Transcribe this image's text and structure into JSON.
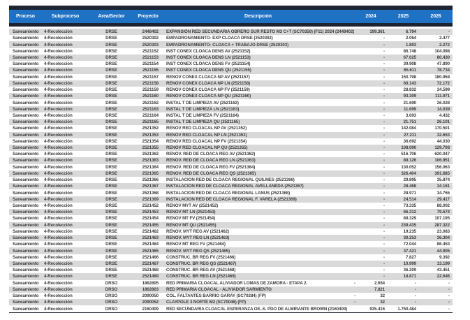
{
  "colors": {
    "header_bg": "#1f71c4",
    "dark_bar": "#1d2330",
    "row_alt": "#d9d9d9",
    "row_text": "#3c3c3c",
    "header_text": "#ffffff"
  },
  "table": {
    "columns": [
      {
        "key": "proceso",
        "label": "Proceso"
      },
      {
        "key": "subproceso",
        "label": "Subproceso"
      },
      {
        "key": "area",
        "label": "Área/Sector"
      },
      {
        "key": "proyecto",
        "label": "Proyecto"
      },
      {
        "key": "descripcion",
        "label": "Descripción"
      },
      {
        "key": "y2024",
        "label": "2024"
      },
      {
        "key": "y2025",
        "label": "2025"
      },
      {
        "key": "y2026",
        "label": "2026"
      }
    ],
    "rows": [
      {
        "proceso": "Saneamiento",
        "subproceso": "4-Recolección",
        "area": "DRSE",
        "proyecto": "2448402",
        "descripcion": "EXPANSIÓN RED SECUNDARIA OBRERO SUR RESTO M3 C+T (SC70350) (F11) 2024 (2448402)",
        "y2024": "199.361",
        "y2025": "6.794",
        "y2026": "-"
      },
      {
        "proceso": "Saneamiento",
        "subproceso": "4-Recolección",
        "area": "DRSE",
        "proyecto": "2520302",
        "descripcion": "EMPADRONAMIENTO- EXP CLOACA DRSE (2520302)",
        "y2024": "-",
        "y2025": "2.064",
        "y2026": "2.477"
      },
      {
        "proceso": "Saneamiento",
        "subproceso": "4-Recolección",
        "area": "DRSE",
        "proyecto": "2520303",
        "descripcion": "EMPADRONAMIENTO- CLOACA + TRABAJO DRSE (2520303)",
        "y2024": "-",
        "y2025": "1.893",
        "y2026": "2.272"
      },
      {
        "proceso": "Saneamiento",
        "subproceso": "4-Recolección",
        "area": "DRSE",
        "proyecto": "2521152",
        "descripcion": "INST CONEX CLOACA DENS  AV (2521152)",
        "y2024": "-",
        "y2025": "86.748",
        "y2026": "104.098"
      },
      {
        "proceso": "Saneamiento",
        "subproceso": "4-Recolección",
        "area": "DRSE",
        "proyecto": "2521153",
        "descripcion": "INST CONEX CLOACA DENS  LN (2521153)",
        "y2024": "-",
        "y2025": "67.025",
        "y2026": "80.430"
      },
      {
        "proceso": "Saneamiento",
        "subproceso": "4-Recolección",
        "area": "DRSE",
        "proyecto": "2521154",
        "descripcion": "INST CONEX CLOACA DENS  FV (2521154)",
        "y2024": "-",
        "y2025": "39.908",
        "y2026": "47.890"
      },
      {
        "proceso": "Saneamiento",
        "subproceso": "4-Recolección",
        "area": "DRSE",
        "proyecto": "2521155",
        "descripcion": "INST CONEX CLOACA DENS  QU (2521155)",
        "y2024": "-",
        "y2025": "65.611",
        "y2026": "78.734"
      },
      {
        "proceso": "Saneamiento",
        "subproceso": "4-Recolección",
        "area": "DRSE",
        "proyecto": "2521157",
        "descripcion": "RENOV CONEX CLOACA NP  AV (2521157)",
        "y2024": "-",
        "y2025": "150.798",
        "y2026": "180.958"
      },
      {
        "proceso": "Saneamiento",
        "subproceso": "4-Recolección",
        "area": "DRSE",
        "proyecto": "2521158",
        "descripcion": "RENOV CONEX CLOACA NP  LN (2521158)",
        "y2024": "-",
        "y2025": "60.143",
        "y2026": "72.172"
      },
      {
        "proceso": "Saneamiento",
        "subproceso": "4-Recolección",
        "area": "DRSE",
        "proyecto": "2521159",
        "descripcion": "RENOV CONEX CLOACA NP  FV (2521159)",
        "y2024": "-",
        "y2025": "28.832",
        "y2026": "34.599"
      },
      {
        "proceso": "Saneamiento",
        "subproceso": "4-Recolección",
        "area": "DRSE",
        "proyecto": "2521160",
        "descripcion": "RENOV CONEX CLOACA NP  QU (2521160)",
        "y2024": "-",
        "y2025": "93.309",
        "y2026": "111.971"
      },
      {
        "proceso": "Saneamiento",
        "subproceso": "4-Recolección",
        "area": "DRSE",
        "proyecto": "2521162",
        "descripcion": "INSTAL T  DE LIMPIEZA  AV (2521162)",
        "y2024": "-",
        "y2025": "21.690",
        "y2026": "26.028"
      },
      {
        "proceso": "Saneamiento",
        "subproceso": "4-Recolección",
        "area": "DRSE",
        "proyecto": "2521163",
        "descripcion": "INSTAL T  DE LIMPIEZA  LN (2521163)",
        "y2024": "-",
        "y2025": "11.699",
        "y2026": "14.039"
      },
      {
        "proceso": "Saneamiento",
        "subproceso": "4-Recolección",
        "area": "DRSE",
        "proyecto": "2521164",
        "descripcion": "INSTAL T  DE LIMPIEZA  FV (2521164)",
        "y2024": "-",
        "y2025": "3.693",
        "y2026": "4.432"
      },
      {
        "proceso": "Saneamiento",
        "subproceso": "4-Recolección",
        "area": "DRSE",
        "proyecto": "2521165",
        "descripcion": "INSTAL T  DE LIMPIEZA  QU (2521165)",
        "y2024": "-",
        "y2025": "21.751",
        "y2026": "26.101"
      },
      {
        "proceso": "Saneamiento",
        "subproceso": "4-Recolección",
        "area": "DRSE",
        "proyecto": "2521352",
        "descripcion": "RENOV RED CLOACAL NP AV (2521352)",
        "y2024": "-",
        "y2025": "142.084",
        "y2026": "170.501"
      },
      {
        "proceso": "Saneamiento",
        "subproceso": "4-Recolección",
        "area": "DRSE",
        "proyecto": "2521353",
        "descripcion": "RENOV RED CLOACAL NP LN (2521353)",
        "y2024": "-",
        "y2025": "27.211",
        "y2026": "32.653"
      },
      {
        "proceso": "Saneamiento",
        "subproceso": "4-Recolección",
        "area": "DRSE",
        "proyecto": "2521354",
        "descripcion": "RENOV RED CLOACAL NP  FV (2521354)",
        "y2024": "-",
        "y2025": "36.692",
        "y2026": "44.030"
      },
      {
        "proceso": "Saneamiento",
        "subproceso": "4-Recolección",
        "area": "DRSE",
        "proyecto": "2521355",
        "descripcion": "RENOV RED CLOACAL NP QU (2521355)",
        "y2024": "-",
        "y2025": "108.090",
        "y2026": "129.708"
      },
      {
        "proceso": "Saneamiento",
        "subproceso": "4-Recolección",
        "area": "DRSE",
        "proyecto": "2521362",
        "descripcion": "RENOV. RED DE CLOACA REG AV (2521362)",
        "y2024": "-",
        "y2025": "516.706",
        "y2026": "620.047"
      },
      {
        "proceso": "Saneamiento",
        "subproceso": "4-Recolección",
        "area": "DRSE",
        "proyecto": "2521363",
        "descripcion": "RENOV. RED DE CLOACA REG LN (2521363)",
        "y2024": "-",
        "y2025": "89.126",
        "y2026": "106.951"
      },
      {
        "proceso": "Saneamiento",
        "subproceso": "4-Recolección",
        "area": "DRSE",
        "proyecto": "2521364",
        "descripcion": "RENOV. RED DE CLOACA REG  FV (2521364)",
        "y2024": "-",
        "y2025": "130.052",
        "y2026": "156.063"
      },
      {
        "proceso": "Saneamiento",
        "subproceso": "4-Recolección",
        "area": "DRSE",
        "proyecto": "2521365",
        "descripcion": "RENOV. RED DE CLOACA REG QS (2521365)",
        "y2024": "-",
        "y2025": "326.404",
        "y2026": "391.685"
      },
      {
        "proceso": "Saneamiento",
        "subproceso": "4-Recolección",
        "area": "DRSE",
        "proyecto": "2521366",
        "descripcion": "INSTALACION RED DE CLOACA REGIONAL QUILMES (2521366)",
        "y2024": "-",
        "y2025": "29.895",
        "y2026": "35.874"
      },
      {
        "proceso": "Saneamiento",
        "subproceso": "4-Recolección",
        "area": "DRSE",
        "proyecto": "2521367",
        "descripcion": "INSTALACION RED DE CLOACA REGIONAL AVELLANEDA (2521367)",
        "y2024": "-",
        "y2025": "28.468",
        "y2026": "34.161"
      },
      {
        "proceso": "Saneamiento",
        "subproceso": "4-Recolección",
        "area": "DRSE",
        "proyecto": "2521368",
        "descripcion": "INSTALACION RED DE CLOACA REGIONAL LANUS (2521368)",
        "y2024": "-",
        "y2025": "28.971",
        "y2026": "34.765"
      },
      {
        "proceso": "Saneamiento",
        "subproceso": "4-Recolección",
        "area": "DRSE",
        "proyecto": "2521369",
        "descripcion": "INSTALACION RED DE CLOACA REGIONAL F. VARELA (2521369)",
        "y2024": "-",
        "y2025": "24.514",
        "y2026": "29.417"
      },
      {
        "proceso": "Saneamiento",
        "subproceso": "4-Recolección",
        "area": "DRSE",
        "proyecto": "2521452",
        "descripcion": "RENOV MYT AV (2521452)",
        "y2024": "-",
        "y2025": "73.335",
        "y2026": "88.002"
      },
      {
        "proceso": "Saneamiento",
        "subproceso": "4-Recolección",
        "area": "DRSE",
        "proyecto": "2521453",
        "descripcion": "RENOV MT  LN (2521453)",
        "y2024": "-",
        "y2025": "66.312",
        "y2026": "79.574"
      },
      {
        "proceso": "Saneamiento",
        "subproceso": "4-Recolección",
        "area": "DRSE",
        "proyecto": "2521454",
        "descripcion": "RENOV MT  FV (2521454)",
        "y2024": "-",
        "y2025": "89.329",
        "y2026": "107.195"
      },
      {
        "proceso": "Saneamiento",
        "subproceso": "4-Recolección",
        "area": "DRSE",
        "proyecto": "2521455",
        "descripcion": "RENOV MT  QU (2521455)",
        "y2024": "-",
        "y2025": "239.435",
        "y2026": "287.322"
      },
      {
        "proceso": "Saneamiento",
        "subproceso": "4-Recolección",
        "area": "DRSE",
        "proyecto": "2521462",
        "descripcion": "RENOV. MYT REG AV (2521462)",
        "y2024": "-",
        "y2025": "19.235",
        "y2026": "23.083"
      },
      {
        "proceso": "Saneamiento",
        "subproceso": "4-Recolección",
        "area": "DRSE",
        "proyecto": "2521463",
        "descripcion": "RENOV. MYT REG LN (2521463)",
        "y2024": "-",
        "y2025": "30.253",
        "y2026": "36.304"
      },
      {
        "proceso": "Saneamiento",
        "subproceso": "4-Recolección",
        "area": "DRSE",
        "proyecto": "2521464",
        "descripcion": "RENOV MT REG FV (2521464)",
        "y2024": "-",
        "y2025": "72.044",
        "y2026": "86.453"
      },
      {
        "proceso": "Saneamiento",
        "subproceso": "4-Recolección",
        "area": "DRSE",
        "proyecto": "2521465",
        "descripcion": "RENOV. MYT REG QS (2521465)",
        "y2024": "-",
        "y2025": "37.421",
        "y2026": "44.905"
      },
      {
        "proceso": "Saneamiento",
        "subproceso": "4-Recolección",
        "area": "DRSE",
        "proyecto": "2521466",
        "descripcion": "CONSTRUC. BR REG FV (2521466)",
        "y2024": "-",
        "y2025": "7.827",
        "y2026": "9.392"
      },
      {
        "proceso": "Saneamiento",
        "subproceso": "4-Recolección",
        "area": "DRSE",
        "proyecto": "2521467",
        "descripcion": "CONSTRUC. BR REG QS (2521467)",
        "y2024": "-",
        "y2025": "10.999",
        "y2026": "13.199"
      },
      {
        "proceso": "Saneamiento",
        "subproceso": "4-Recolección",
        "area": "DRSE",
        "proyecto": "2521468",
        "descripcion": "CONSTRUC. BR REG AV (2521468)",
        "y2024": "-",
        "y2025": "36.209",
        "y2026": "43.451"
      },
      {
        "proceso": "Saneamiento",
        "subproceso": "4-Recolección",
        "area": "DRSE",
        "proyecto": "2521469",
        "descripcion": "CONSTRUC. BR REG LN (2521469)",
        "y2024": "-",
        "y2025": "18.871",
        "y2026": "22.646"
      },
      {
        "proceso": "Saneamiento",
        "subproceso": "4-Recolección",
        "area": "DRSO",
        "proyecto": "1862805",
        "descripcion": "RED PRIMARIA CLOACAL ALIVIADOR LOMAS DE ZAMORA - ETAPA 2.",
        "y2024_sign": "-",
        "y2024": "2.654",
        "y2025": "-",
        "y2026": "-"
      },
      {
        "proceso": "Saneamiento",
        "subproceso": "4-Recolección",
        "area": "DRSO",
        "proyecto": "1862803",
        "descripcion": "RED PRIMARIA CLOACAL - ALIVIADOR SARMIENTO",
        "y2024": "7.821",
        "y2025": "-",
        "y2026": "-"
      },
      {
        "proceso": "Saneamiento",
        "subproceso": "4-Recolección",
        "area": "DRSO",
        "proyecto": "2090050",
        "descripcion": "COL. FALTANTES BARRIO GARAY (SC70284) (FP)",
        "y2024_sign": "-",
        "y2024": "32",
        "y2025": "-",
        "y2026": "-"
      },
      {
        "proceso": "Saneamiento",
        "subproceso": "4-Recolección",
        "area": "DRSO",
        "proyecto": "2090052",
        "descripcion": "CLAYPOLE 3 NORTE M2 (SC70046) (FP)",
        "y2024_sign": "-",
        "y2024": "32",
        "y2025": "-",
        "y2026": "-"
      },
      {
        "proceso": "Saneamiento",
        "subproceso": "4-Recolección",
        "area": "DRSO",
        "proyecto": "2160409",
        "descripcion": "RED SECUNDARIA CLOACAL ESPERANZA OE..S. PDO DE ALMIRANTE BROWN (2160409)",
        "y2024": "935.416",
        "y2025": "1.750.484",
        "y2026": "-"
      }
    ]
  }
}
